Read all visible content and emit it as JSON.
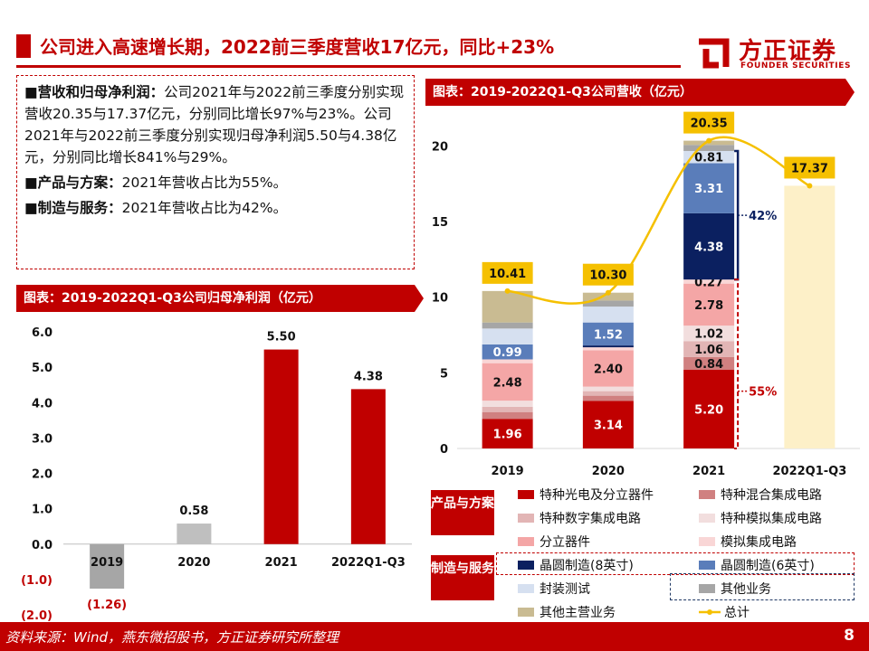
{
  "header": {
    "title": "公司进入高速增长期，2022前三季度营收17亿元，同比+23%",
    "logo_cn": "方正证券",
    "logo_en": "FOUNDER SECURITIES"
  },
  "summary": {
    "p1_label": "营收和归母净利润：",
    "p1_text": "公司2021年与2022前三季度分别实现营收20.35与17.37亿元，分别同比增长97%与23%。公司2021年与2022前三季度分别实现归母净利润5.50与4.38亿元，分别同比增长841%与29%。",
    "p2_label": "产品与方案：",
    "p2_text": "2021年营收占比为55%。",
    "p3_label": "制造与服务：",
    "p3_text": "2021年营收占比为42%。"
  },
  "profit_chart": {
    "header": "图表：2019-2022Q1-Q3公司归母净利润（亿元）"
  },
  "revenue_chart": {
    "header": "图表：2019-2022Q1-Q3公司营收（亿元）"
  },
  "legend": {
    "group_product": "产品与方案",
    "group_service": "制造与服务",
    "items": {
      "guangdian": "特种光电及分立器件",
      "hunhe": "特种混合集成电路",
      "shuzi": "特种数字集成电路",
      "moni": "特种模拟集成电路",
      "fenli": "分立器件",
      "monijc": "模拟集成电路",
      "wafer8": "晶圆制造(8英寸)",
      "wafer6": "晶圆制造(6英寸)",
      "fengzhuang": "封装测试",
      "qita": "其他业务",
      "qitazhuying": "其他主营业务",
      "zongji": "总计"
    }
  },
  "footer": {
    "source": "资料来源：Wind，燕东微招股书，方正证券研究所整理",
    "page": "8"
  },
  "colors": {
    "brand_red": "#c00000",
    "navy": "#0b2060",
    "gold": "#f5c000"
  },
  "chart_data": [
    {
      "type": "bar",
      "title": "图表：2019-2022Q1-Q3公司归母净利润（亿元）",
      "categories": [
        "2019",
        "2020",
        "2021",
        "2022Q1-Q3"
      ],
      "values": [
        -1.26,
        0.58,
        5.5,
        4.38
      ],
      "data_labels": [
        "(1.26)",
        "0.58",
        "5.50",
        "4.38"
      ],
      "ylim": [
        -2.0,
        6.0
      ],
      "yticks": [
        -2.0,
        -1.0,
        0.0,
        1.0,
        2.0,
        3.0,
        4.0,
        5.0,
        6.0
      ],
      "ytick_labels": [
        "(2.0)",
        "(1.0)",
        "0.0",
        "1.0",
        "2.0",
        "3.0",
        "4.0",
        "5.0",
        "6.0"
      ],
      "bar_colors": [
        "#a6a6a6",
        "#bfbfbf",
        "#c00000",
        "#c00000"
      ]
    },
    {
      "type": "bar",
      "stacked": true,
      "title": "图表：2019-2022Q1-Q3公司营收（亿元）",
      "categories": [
        "2019",
        "2020",
        "2021",
        "2022Q1-Q3"
      ],
      "ylim": [
        0,
        22
      ],
      "yticks": [
        0,
        5,
        10,
        15,
        20
      ],
      "series": [
        {
          "key": "guangdian",
          "name": "特种光电及分立器件",
          "color": "#c00000",
          "values": [
            1.96,
            3.14,
            5.2,
            0
          ],
          "labels": [
            "1.96",
            "3.14",
            "5.20",
            ""
          ]
        },
        {
          "key": "hunhe",
          "name": "特种混合集成电路",
          "color": "#d08080",
          "values": [
            0.45,
            0.35,
            0.84,
            0
          ],
          "labels": [
            "",
            "",
            "0.84",
            ""
          ]
        },
        {
          "key": "shuzi",
          "name": "特种数字集成电路",
          "color": "#e2b5b5",
          "values": [
            0.35,
            0.3,
            1.06,
            0
          ],
          "labels": [
            "",
            "",
            "1.06",
            ""
          ]
        },
        {
          "key": "moni",
          "name": "特种模拟集成电路",
          "color": "#f2dede",
          "values": [
            0.4,
            0.3,
            1.02,
            0
          ],
          "labels": [
            "",
            "",
            "1.02",
            ""
          ]
        },
        {
          "key": "fenli",
          "name": "分立器件",
          "color": "#f4a6a6",
          "values": [
            2.48,
            2.4,
            2.78,
            0
          ],
          "labels": [
            "2.48",
            "2.40",
            "2.78",
            ""
          ]
        },
        {
          "key": "monijc",
          "name": "模拟集成电路",
          "color": "#f9d6d6",
          "values": [
            0.25,
            0.2,
            0.27,
            0
          ],
          "labels": [
            "",
            "",
            "0.27",
            ""
          ]
        },
        {
          "key": "wafer8",
          "name": "晶圆制造(8英寸)",
          "color": "#0b2060",
          "values": [
            0,
            0.12,
            4.38,
            0
          ],
          "labels": [
            "",
            "",
            "4.38",
            ""
          ]
        },
        {
          "key": "wafer6",
          "name": "晶圆制造(6英寸)",
          "color": "#5a7dba",
          "values": [
            0.99,
            1.52,
            3.31,
            0
          ],
          "labels": [
            "0.99",
            "1.52",
            "3.31",
            ""
          ]
        },
        {
          "key": "fengzhuang",
          "name": "封装测试",
          "color": "#d6e0f0",
          "values": [
            1.05,
            1.05,
            0.81,
            0
          ],
          "labels": [
            "",
            "",
            "0.81",
            ""
          ]
        },
        {
          "key": "qita",
          "name": "其他业务",
          "color": "#a6a6a6",
          "values": [
            0.4,
            0.4,
            0.4,
            0
          ],
          "labels": [
            "",
            "",
            "",
            ""
          ]
        },
        {
          "key": "qitazhuying",
          "name": "其他主营业务",
          "color": "#c9bb92",
          "values": [
            2.08,
            0.52,
            0.28,
            17.37
          ],
          "labels": [
            "",
            "",
            "",
            ""
          ]
        }
      ],
      "override_colors": {
        "2022Q1-Q3": "#fdf0c8"
      },
      "total": {
        "name": "总计",
        "values": [
          10.41,
          10.3,
          20.35,
          17.37
        ],
        "labels": [
          "10.41",
          "10.30",
          "20.35",
          "17.37"
        ],
        "color": "#f5c000"
      },
      "annotations": [
        {
          "text": "42%",
          "group": "制造与服务",
          "year": "2021"
        },
        {
          "text": "55%",
          "group": "产品与方案",
          "year": "2021"
        }
      ]
    }
  ]
}
